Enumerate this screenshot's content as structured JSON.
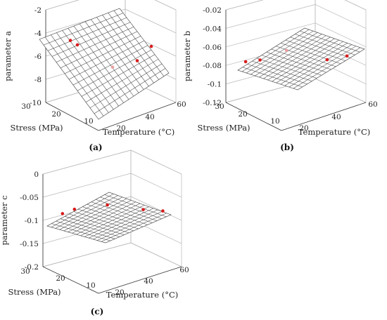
{
  "chart_data": [
    {
      "type": "surface",
      "panel_label": "(a)",
      "zlabel": "parameter a",
      "xlabel": "Temperature (°C)",
      "ylabel": "Stress (MPa)",
      "x_ticks": [
        "20",
        "40",
        "60"
      ],
      "y_ticks": [
        "10",
        "20",
        "30"
      ],
      "z_ticks": [
        "-2",
        "-4",
        "-6",
        "-8",
        "-10"
      ],
      "xlim": [
        5,
        60
      ],
      "ylim": [
        5,
        30
      ],
      "zlim": [
        -10,
        -2
      ],
      "points": [
        {
          "x": 15,
          "y": 25,
          "z": -4.6,
          "faint": false
        },
        {
          "x": 20,
          "y": 25,
          "z": -5.2,
          "faint": false
        },
        {
          "x": 30,
          "y": 15,
          "z": -6.6,
          "faint": true
        },
        {
          "x": 40,
          "y": 10,
          "z": -6.0,
          "faint": false
        },
        {
          "x": 50,
          "y": 10,
          "z": -5.2,
          "faint": false
        }
      ]
    },
    {
      "type": "surface",
      "panel_label": "(b)",
      "zlabel": "parameter b",
      "xlabel": "Temperature (°C)",
      "ylabel": "Stress (MPa)",
      "x_ticks": [
        "20",
        "40",
        "60"
      ],
      "y_ticks": [
        "10",
        "20",
        "30"
      ],
      "z_ticks": [
        "-0.02",
        "-0.04",
        "-0.06",
        "-0.08",
        "-0.1",
        "-0.12"
      ],
      "xlim": [
        5,
        60
      ],
      "ylim": [
        5,
        30
      ],
      "zlim": [
        -0.12,
        -0.01
      ],
      "points": [
        {
          "x": 15,
          "y": 28,
          "z": -0.075,
          "faint": false
        },
        {
          "x": 20,
          "y": 25,
          "z": -0.072,
          "faint": false
        },
        {
          "x": 30,
          "y": 20,
          "z": -0.06,
          "faint": true
        },
        {
          "x": 42,
          "y": 10,
          "z": -0.065,
          "faint": false
        },
        {
          "x": 52,
          "y": 8,
          "z": -0.064,
          "faint": false
        }
      ]
    },
    {
      "type": "surface",
      "panel_label": "(c)",
      "zlabel": "parameter c",
      "xlabel": "Temperature (°C)",
      "ylabel": "Stress (MPa)",
      "x_ticks": [
        "20",
        "40",
        "60"
      ],
      "y_ticks": [
        "10",
        "20",
        "30"
      ],
      "z_ticks": [
        "0",
        "-0.05",
        "-0.1",
        "-0.15",
        "-0.2"
      ],
      "xlim": [
        5,
        60
      ],
      "ylim": [
        5,
        30
      ],
      "zlim": [
        -0.2,
        0.03
      ],
      "points": [
        {
          "x": 15,
          "y": 28,
          "z": -0.075,
          "faint": false
        },
        {
          "x": 20,
          "y": 26,
          "z": -0.065,
          "faint": false
        },
        {
          "x": 30,
          "y": 18,
          "z": -0.045,
          "faint": false
        },
        {
          "x": 42,
          "y": 10,
          "z": -0.05,
          "faint": false
        },
        {
          "x": 52,
          "y": 8,
          "z": -0.06,
          "faint": false
        }
      ]
    }
  ]
}
